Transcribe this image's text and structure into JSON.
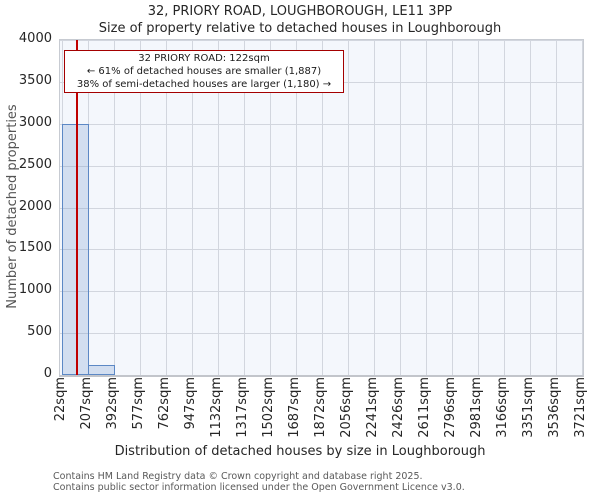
{
  "chart_data": {
    "type": "bar",
    "title": "32, PRIORY ROAD, LOUGHBOROUGH, LE11 3PP",
    "subtitle": "Size of property relative to detached houses in Loughborough",
    "xlabel": "Distribution of detached houses by size in Loughborough",
    "ylabel": "Number of detached properties",
    "x_tick_labels": [
      "22sqm",
      "207sqm",
      "392sqm",
      "577sqm",
      "762sqm",
      "947sqm",
      "1132sqm",
      "1317sqm",
      "1502sqm",
      "1687sqm",
      "1872sqm",
      "2056sqm",
      "2241sqm",
      "2426sqm",
      "2611sqm",
      "2796sqm",
      "2981sqm",
      "3166sqm",
      "3351sqm",
      "3536sqm",
      "3721sqm"
    ],
    "bin_edges_sqm": [
      22,
      207,
      392,
      577,
      762,
      947,
      1132,
      1317,
      1502,
      1687,
      1872,
      2056,
      2241,
      2426,
      2611,
      2796,
      2981,
      3166,
      3351,
      3536,
      3721
    ],
    "values": [
      3000,
      115,
      0,
      0,
      0,
      0,
      0,
      0,
      0,
      0,
      0,
      0,
      0,
      0,
      0,
      0,
      0,
      0,
      0,
      0
    ],
    "ylim": [
      0,
      4000
    ],
    "yticks": [
      0,
      500,
      1000,
      1500,
      2000,
      2500,
      3000,
      3500,
      4000
    ],
    "grid": true,
    "legend": false,
    "marker_line_sqm": 122
  },
  "annotation": {
    "line1": "32 PRIORY ROAD: 122sqm",
    "line2": "← 61% of detached houses are smaller (1,887)",
    "line3": "38% of semi-detached houses are larger (1,180) →"
  },
  "footer": {
    "line1": "Contains HM Land Registry data © Crown copyright and database right 2025.",
    "line2": "Contains public sector information licensed under the Open Government Licence v3.0."
  },
  "colors": {
    "bar_fill": "#d5e1f2",
    "bar_border": "#5c88c5",
    "marker_line": "#c00000",
    "annotation_border": "#a40000",
    "plot_background": "#f4f7fc",
    "grid_line": "#d2d6de",
    "axis_text": "#262626",
    "muted_text": "#595959"
  }
}
